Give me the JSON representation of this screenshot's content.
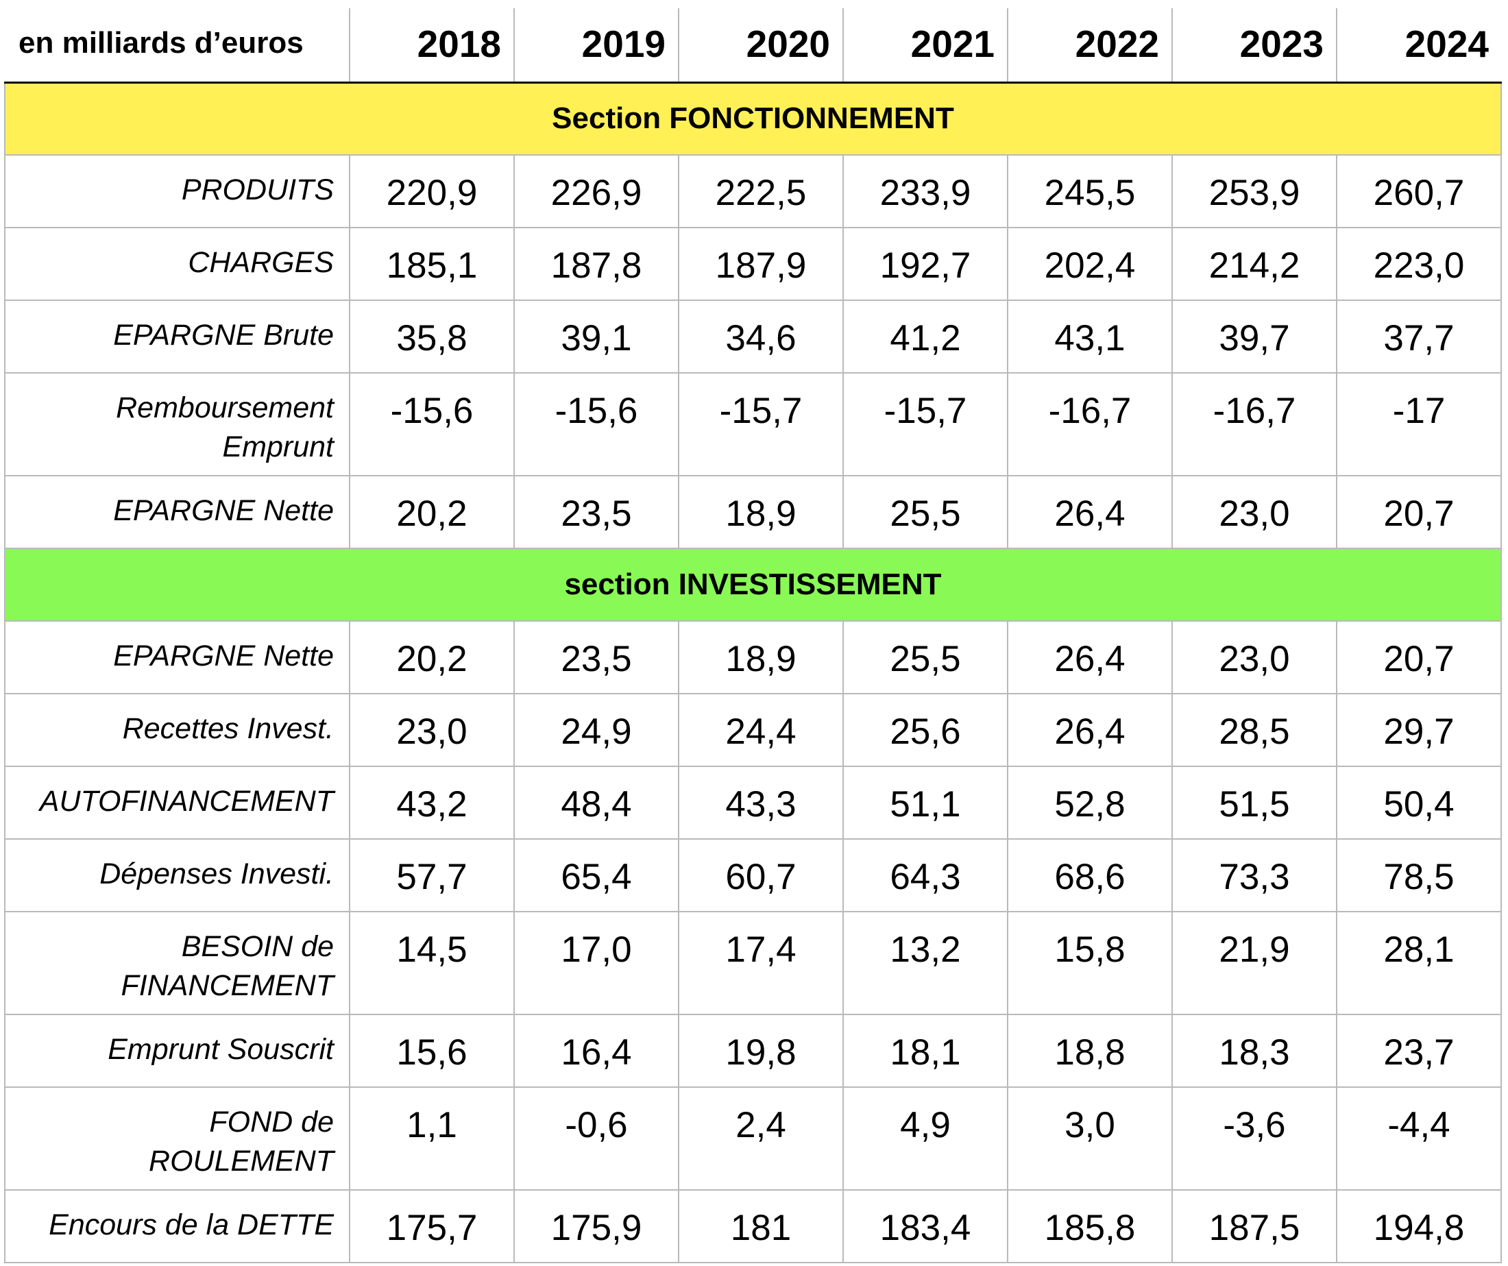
{
  "chart_data": {
    "type": "table",
    "unit_label": "en milliards d’euros",
    "years": [
      "2018",
      "2019",
      "2020",
      "2021",
      "2022",
      "2023",
      "2024"
    ],
    "colors": {
      "fonctionnement": "#fef055",
      "investissement": "#89f955"
    },
    "sections": [
      {
        "title": "Section FONCTIONNEMENT",
        "color": "#fef055",
        "rows": [
          {
            "label": "PRODUITS",
            "values": [
              "220,9",
              "226,9",
              "222,5",
              "233,9",
              "245,5",
              "253,9",
              "260,7"
            ]
          },
          {
            "label": "CHARGES",
            "values": [
              "185,1",
              "187,8",
              "187,9",
              "192,7",
              "202,4",
              "214,2",
              "223,0"
            ]
          },
          {
            "label": "EPARGNE Brute",
            "values": [
              "35,8",
              "39,1",
              "34,6",
              "41,2",
              "43,1",
              "39,7",
              "37,7"
            ]
          },
          {
            "label": "Remboursement Emprunt",
            "values": [
              "-15,6",
              "-15,6",
              "-15,7",
              "-15,7",
              "-16,7",
              "-16,7",
              "-17"
            ]
          },
          {
            "label": "EPARGNE Nette",
            "values": [
              "20,2",
              "23,5",
              "18,9",
              "25,5",
              "26,4",
              "23,0",
              "20,7"
            ]
          }
        ]
      },
      {
        "title": "section INVESTISSEMENT",
        "color": "#89f955",
        "rows": [
          {
            "label": "EPARGNE Nette",
            "values": [
              "20,2",
              "23,5",
              "18,9",
              "25,5",
              "26,4",
              "23,0",
              "20,7"
            ]
          },
          {
            "label": "Recettes Invest.",
            "values": [
              "23,0",
              "24,9",
              "24,4",
              "25,6",
              "26,4",
              "28,5",
              "29,7"
            ]
          },
          {
            "label": "AUTOFINANCEMENT",
            "values": [
              "43,2",
              "48,4",
              "43,3",
              "51,1",
              "52,8",
              "51,5",
              "50,4"
            ]
          },
          {
            "label": "Dépenses Investi.",
            "values": [
              "57,7",
              "65,4",
              "60,7",
              "64,3",
              "68,6",
              "73,3",
              "78,5"
            ]
          },
          {
            "label": "BESOIN de FINANCEMENT",
            "values": [
              "14,5",
              "17,0",
              "17,4",
              "13,2",
              "15,8",
              "21,9",
              "28,1"
            ]
          },
          {
            "label": "Emprunt Souscrit",
            "values": [
              "15,6",
              "16,4",
              "19,8",
              "18,1",
              "18,8",
              "18,3",
              "23,7"
            ]
          },
          {
            "label": "FOND de ROULEMENT",
            "values": [
              "1,1",
              "-0,6",
              "2,4",
              "4,9",
              "3,0",
              "-3,6",
              "-4,4"
            ]
          },
          {
            "label": "Encours de la DETTE",
            "values": [
              "175,7",
              "175,9",
              "181",
              "183,4",
              "185,8",
              "187,5",
              "194,8"
            ]
          }
        ]
      }
    ]
  }
}
